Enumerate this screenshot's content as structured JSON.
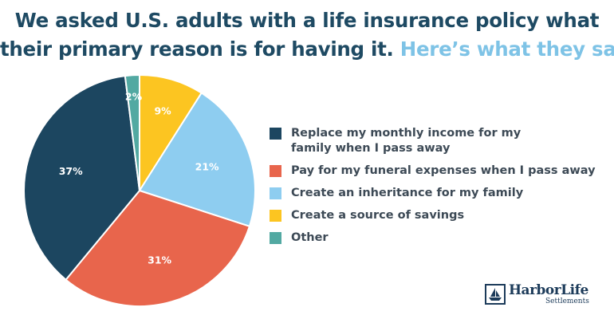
{
  "title": {
    "line1": "We asked U.S. adults with a life insurance policy what",
    "line2_part1": "their primary reason is for having it.",
    "line2_part2": "Here’s what they said:"
  },
  "colors": {
    "title_dark": "#1e4a63",
    "title_accent": "#7ec3e6",
    "legend_text": "#3d4a56"
  },
  "chart_data": {
    "type": "pie",
    "start_angle_deg": 0,
    "direction": "clockwise",
    "slices": [
      {
        "label": "Create a source of savings",
        "value": 9,
        "display": "9%",
        "color": "#fcc521"
      },
      {
        "label": "Create an inheritance for my family",
        "value": 21,
        "display": "21%",
        "color": "#8ecdf0"
      },
      {
        "label": "Pay for my funeral expenses when I pass away",
        "value": 31,
        "display": "31%",
        "color": "#e8654c"
      },
      {
        "label": "Replace my monthly income for my family when I pass away",
        "value": 37,
        "display": "37%",
        "color": "#1c4660"
      },
      {
        "label": "Other",
        "value": 2,
        "display": "2%",
        "color": "#52a9a2"
      }
    ]
  },
  "legend": {
    "items": [
      {
        "label": "Replace my monthly income for my family when I pass away",
        "color": "#1c4660"
      },
      {
        "label": "Pay for my funeral expenses when I pass away",
        "color": "#e8654c"
      },
      {
        "label": "Create an inheritance for my family",
        "color": "#8ecdf0"
      },
      {
        "label": "Create a source of savings",
        "color": "#fcc521"
      },
      {
        "label": "Other",
        "color": "#52a9a2"
      }
    ]
  },
  "logo": {
    "name": "HarborLife",
    "sub": "Settlements",
    "icon": "lighthouse-boat-icon"
  }
}
